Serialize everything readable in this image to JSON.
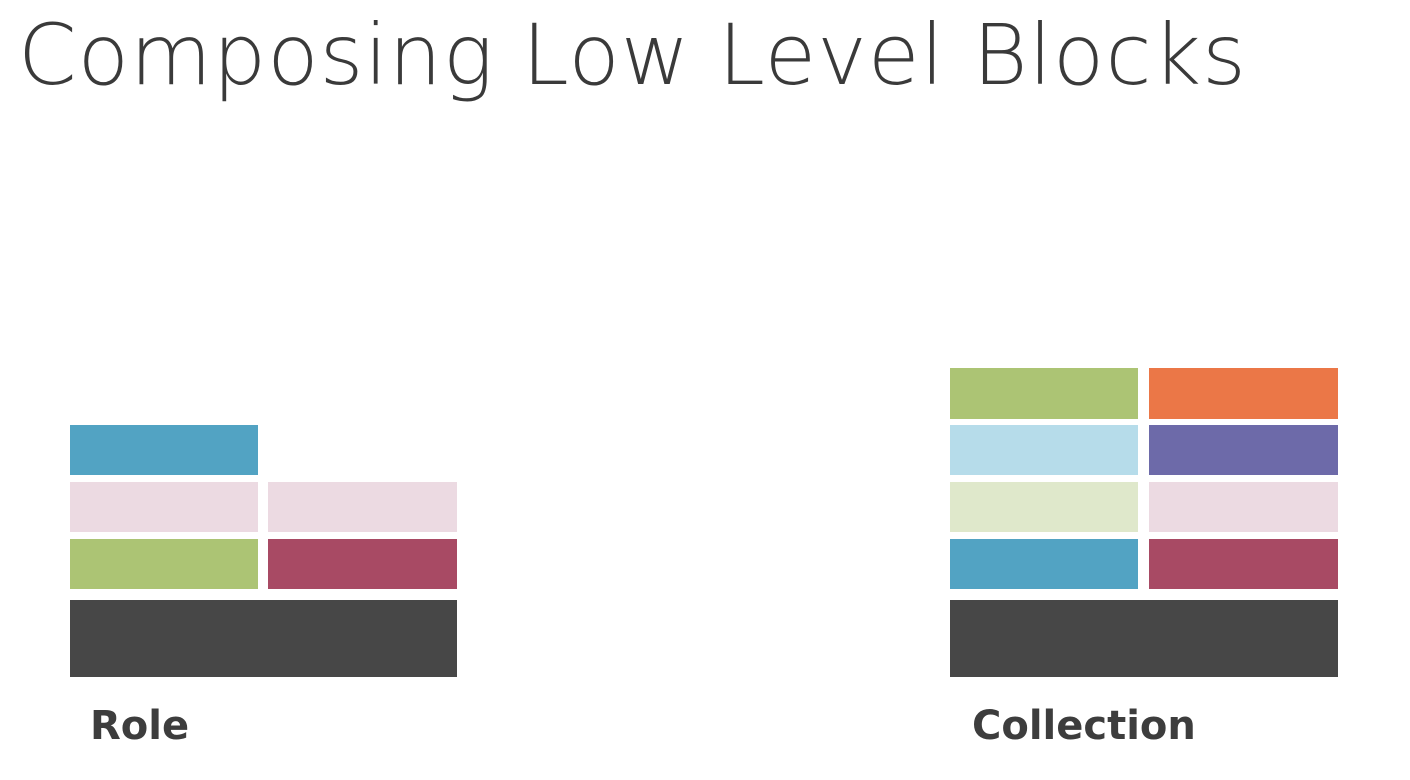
{
  "title": "Composing Low Level Blocks",
  "stacks": {
    "role": {
      "label": "Role",
      "blocks": [
        {
          "name": "blue-block",
          "color": "#52a3c3"
        },
        {
          "name": "pink-block-left",
          "color": "#ecdae2"
        },
        {
          "name": "pink-block-right",
          "color": "#ecdae2"
        },
        {
          "name": "green-block",
          "color": "#acc474"
        },
        {
          "name": "maroon-block",
          "color": "#a84a64"
        },
        {
          "name": "base-block",
          "color": "#474747"
        }
      ]
    },
    "collection": {
      "label": "Collection",
      "blocks": [
        {
          "name": "green-block",
          "color": "#acc474"
        },
        {
          "name": "orange-block",
          "color": "#eb7747"
        },
        {
          "name": "light-blue-block",
          "color": "#b6dcea"
        },
        {
          "name": "purple-block",
          "color": "#6d6aa9"
        },
        {
          "name": "pale-green-block",
          "color": "#dfe8cb"
        },
        {
          "name": "pink-block",
          "color": "#ecdae2"
        },
        {
          "name": "blue-block",
          "color": "#52a3c3"
        },
        {
          "name": "maroon-block",
          "color": "#a84a64"
        },
        {
          "name": "base-block",
          "color": "#474747"
        }
      ]
    }
  }
}
